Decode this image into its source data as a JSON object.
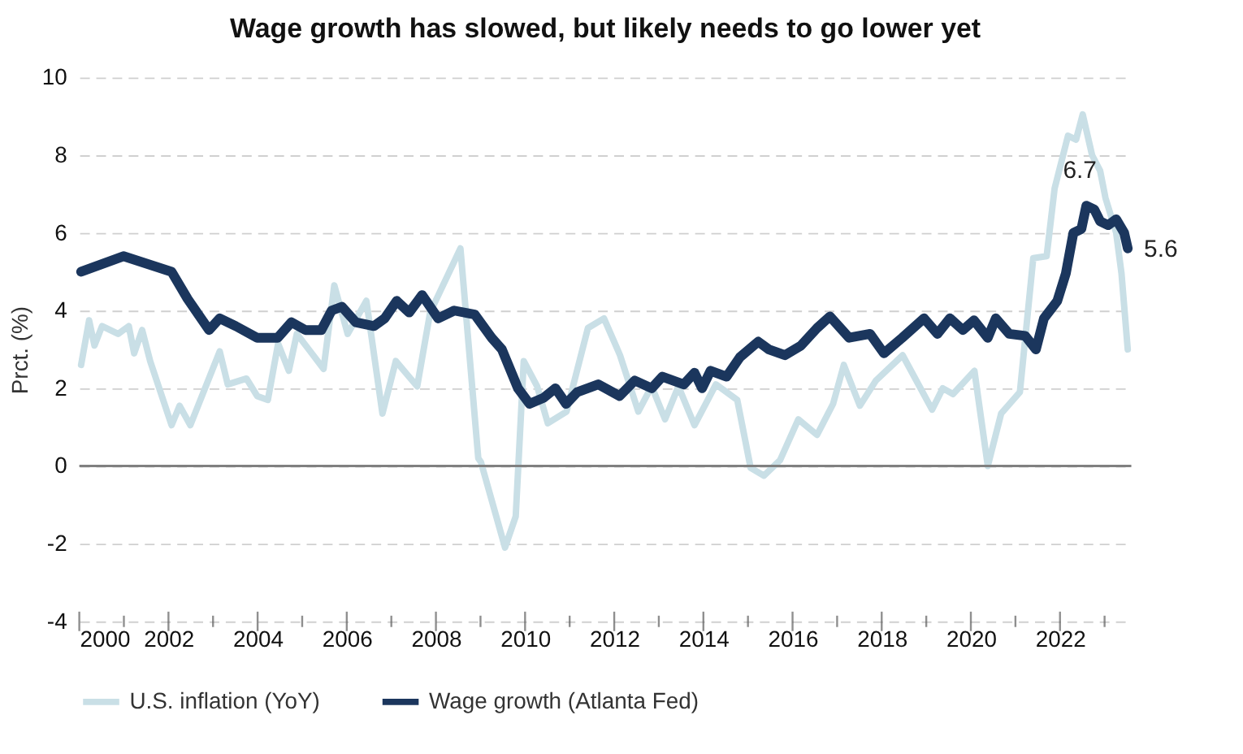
{
  "chart_data": {
    "type": "line",
    "title": "Wage growth has slowed, but likely needs to go lower yet",
    "ylabel": "Prct. (%)",
    "xlim": [
      2000,
      2023.6
    ],
    "ylim": [
      -4,
      10
    ],
    "xticks": [
      2000,
      {
        "value": 2001,
        "label": null
      },
      2002,
      {
        "value": 2003,
        "label": null
      },
      2004,
      {
        "value": 2005,
        "label": null
      },
      2006,
      {
        "value": 2007,
        "label": null
      },
      2008,
      {
        "value": 2009,
        "label": null
      },
      2010,
      {
        "value": 2011,
        "label": null
      },
      2012,
      {
        "value": 2013,
        "label": null
      },
      2014,
      {
        "value": 2015,
        "label": null
      },
      2016,
      {
        "value": 2017,
        "label": null
      },
      2018,
      {
        "value": 2019,
        "label": null
      },
      2020,
      {
        "value": 2021,
        "label": null
      },
      2022,
      {
        "value": 2023,
        "label": null
      }
    ],
    "yticks": [
      -4,
      -2,
      0,
      2,
      4,
      6,
      8,
      10
    ],
    "grid": "y",
    "legend": "bottom",
    "line_style": "solid",
    "marker": "none",
    "ref_lines": [
      {
        "axis": "y",
        "value": 0,
        "label": null,
        "color": "#808080"
      }
    ],
    "annotations": [
      {
        "text": "6.7",
        "x": 2022.59,
        "y": 6.7
      },
      {
        "text": "5.6",
        "x": 2023.52,
        "y": 5.6
      }
    ],
    "series": [
      {
        "name": "U.S. inflation (YoY)",
        "color": "#c9dfe6",
        "x": [
          2000.04,
          2000.22,
          2000.34,
          2000.51,
          2000.87,
          2001.11,
          2001.23,
          2001.41,
          2001.59,
          2002.07,
          2002.25,
          2002.49,
          2003.15,
          2003.33,
          2003.75,
          2003.99,
          2004.23,
          2004.46,
          2004.7,
          2004.88,
          2005.18,
          2005.48,
          2005.72,
          2006.02,
          2006.44,
          2006.8,
          2007.1,
          2007.58,
          2007.87,
          2008.55,
          2008.95,
          2009.01,
          2009.55,
          2009.79,
          2009.97,
          2010.27,
          2010.51,
          2010.93,
          2011.41,
          2011.77,
          2012.13,
          2012.54,
          2012.84,
          2013.14,
          2013.44,
          2013.8,
          2014.1,
          2014.28,
          2014.76,
          2015.06,
          2015.36,
          2015.72,
          2016.13,
          2016.55,
          2016.91,
          2017.15,
          2017.51,
          2017.87,
          2018.47,
          2019.13,
          2019.37,
          2019.6,
          2020.08,
          2020.38,
          2020.68,
          2021.1,
          2021.4,
          2021.7,
          2021.88,
          2022.18,
          2022.36,
          2022.51,
          2022.72,
          2022.9,
          2023.02,
          2023.26,
          2023.38,
          2023.52
        ],
        "values": [
          2.6,
          3.75,
          3.1,
          3.6,
          3.4,
          3.6,
          2.9,
          3.5,
          2.7,
          1.05,
          1.55,
          1.05,
          2.95,
          2.1,
          2.25,
          1.8,
          1.7,
          3.15,
          2.45,
          3.4,
          2.95,
          2.5,
          4.65,
          3.4,
          4.25,
          1.35,
          2.7,
          2.05,
          3.95,
          5.6,
          0.2,
          0.1,
          -2.1,
          -1.3,
          2.7,
          2.05,
          1.1,
          1.4,
          3.55,
          3.8,
          2.85,
          1.4,
          2.05,
          1.2,
          2.05,
          1.05,
          1.7,
          2.1,
          1.7,
          -0.05,
          -0.25,
          0.15,
          1.2,
          0.8,
          1.6,
          2.6,
          1.55,
          2.2,
          2.85,
          1.45,
          2.0,
          1.85,
          2.45,
          0.0,
          1.35,
          1.9,
          5.35,
          5.4,
          7.15,
          8.5,
          8.4,
          9.05,
          8.0,
          7.6,
          6.9,
          6.0,
          4.95,
          3.0
        ]
      },
      {
        "name": "Wage growth (Atlanta Fed)",
        "color": "#1b365d",
        "x": [
          2000.04,
          2000.99,
          2002.07,
          2002.43,
          2002.91,
          2003.15,
          2003.51,
          2003.99,
          2004.45,
          2004.76,
          2005.07,
          2005.43,
          2005.66,
          2005.89,
          2006.2,
          2006.61,
          2006.85,
          2007.12,
          2007.4,
          2007.69,
          2008.05,
          2008.41,
          2008.87,
          2009.25,
          2009.48,
          2009.84,
          2010.1,
          2010.41,
          2010.68,
          2010.92,
          2011.17,
          2011.64,
          2012.12,
          2012.46,
          2012.84,
          2013.08,
          2013.56,
          2013.8,
          2013.97,
          2014.16,
          2014.52,
          2014.82,
          2015.23,
          2015.47,
          2015.83,
          2016.19,
          2016.55,
          2016.84,
          2017.27,
          2017.74,
          2018.05,
          2018.46,
          2018.95,
          2019.25,
          2019.53,
          2019.82,
          2020.07,
          2020.38,
          2020.56,
          2020.86,
          2021.22,
          2021.46,
          2021.64,
          2021.94,
          2022.13,
          2022.3,
          2022.48,
          2022.59,
          2022.77,
          2022.9,
          2023.08,
          2023.26,
          2023.44,
          2023.52
        ],
        "values": [
          5.0,
          5.4,
          5.0,
          4.3,
          3.5,
          3.8,
          3.6,
          3.3,
          3.3,
          3.7,
          3.5,
          3.5,
          4.0,
          4.1,
          3.7,
          3.6,
          3.8,
          4.25,
          3.95,
          4.4,
          3.8,
          4.0,
          3.9,
          3.3,
          3.0,
          2.0,
          1.6,
          1.75,
          2.0,
          1.6,
          1.9,
          2.1,
          1.8,
          2.2,
          2.0,
          2.3,
          2.1,
          2.4,
          2.0,
          2.45,
          2.3,
          2.8,
          3.2,
          3.0,
          2.85,
          3.1,
          3.55,
          3.85,
          3.3,
          3.4,
          2.9,
          3.3,
          3.8,
          3.4,
          3.8,
          3.5,
          3.75,
          3.3,
          3.8,
          3.4,
          3.35,
          3.0,
          3.8,
          4.25,
          4.95,
          6.0,
          6.1,
          6.7,
          6.6,
          6.3,
          6.2,
          6.35,
          6.0,
          5.6
        ]
      }
    ]
  }
}
